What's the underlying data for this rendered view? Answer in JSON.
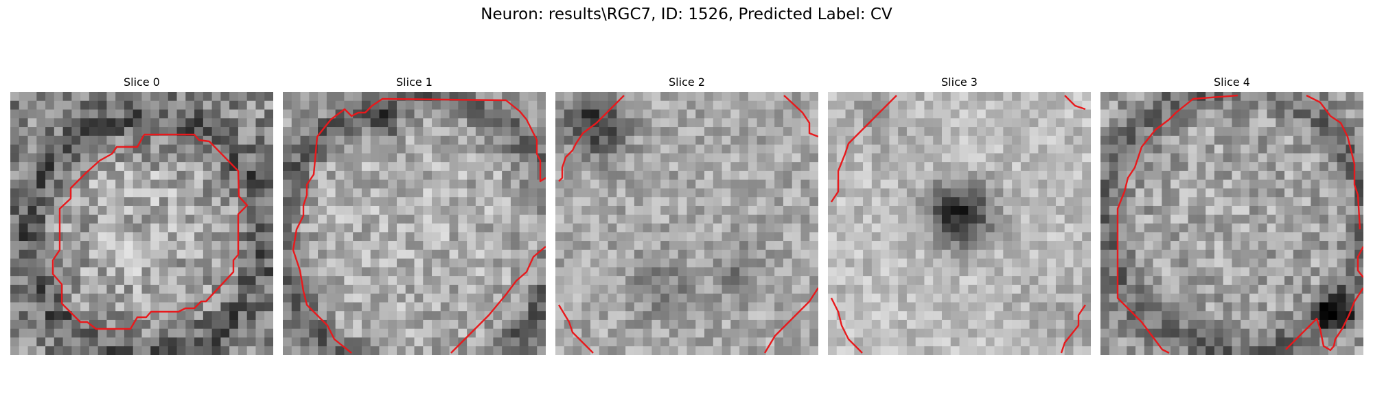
{
  "figure": {
    "title": "Neuron: results\\RGC7, ID: 1526, Predicted Label: CV",
    "contour_color": "#e8191c",
    "colormap": "gray"
  },
  "slices": [
    {
      "label": "Slice 0"
    },
    {
      "label": "Slice 1"
    },
    {
      "label": "Slice 2"
    },
    {
      "label": "Slice 3"
    },
    {
      "label": "Slice 4"
    }
  ]
}
